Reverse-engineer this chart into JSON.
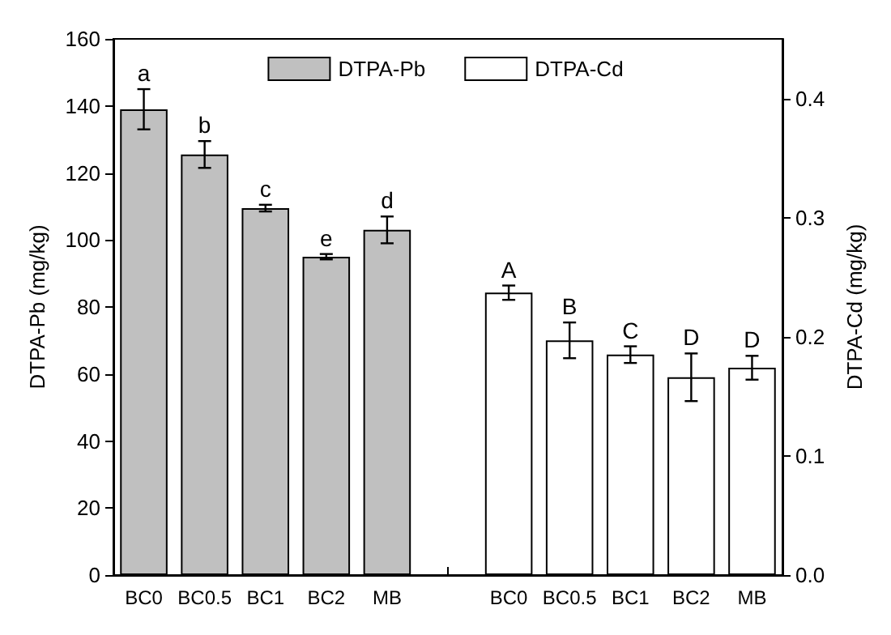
{
  "chart_data": {
    "type": "bar",
    "xlabel": null,
    "ylabel": "DTPA-Pb (mg/kg)",
    "y2label": "DTPA-Cd (mg/kg)",
    "categories": [
      "BC0",
      "BC0.5",
      "BC1",
      "BC2",
      "MB",
      null,
      "BC0",
      "BC0.5",
      "BC1",
      "BC2",
      "MB"
    ],
    "series": [
      {
        "name": "DTPA-Pb",
        "color": "#c0c0c0",
        "values": [
          139,
          125.5,
          109.5,
          95,
          103,
          null,
          null,
          null,
          null,
          null,
          null
        ],
        "errors": [
          6,
          4,
          1,
          0.8,
          4,
          null,
          null,
          null,
          null,
          null,
          null
        ],
        "value_labels": [
          "a",
          "b",
          "c",
          "e",
          "d",
          null,
          null,
          null,
          null,
          null,
          null
        ]
      },
      {
        "name": "DTPA-Cd",
        "color": "#ffffff",
        "axis": "y2",
        "values": [
          null,
          null,
          null,
          null,
          null,
          null,
          0.237,
          0.197,
          0.185,
          0.166,
          0.174
        ],
        "errors": [
          null,
          null,
          null,
          null,
          null,
          null,
          0.006,
          0.015,
          0.007,
          0.02,
          0.01
        ],
        "value_labels": [
          null,
          null,
          null,
          null,
          null,
          null,
          "A",
          "B",
          "C",
          "D",
          "D"
        ]
      }
    ],
    "ylim": [
      0,
      160
    ],
    "yticks": [
      0,
      20,
      40,
      60,
      80,
      100,
      120,
      140,
      160
    ],
    "y2lim": [
      0,
      0.45
    ],
    "y2ticks": [
      {
        "value": 0,
        "label": "0.0"
      },
      0.1,
      0.2,
      0.3,
      0.4
    ],
    "grid": false,
    "legend": "top"
  }
}
